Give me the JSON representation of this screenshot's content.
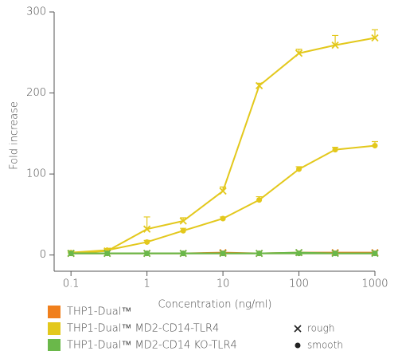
{
  "chart_data": {
    "type": "line",
    "x_label": "Concentration (ng/ml)",
    "y_label": "Fold increase",
    "x": [
      0.1,
      0.3,
      1,
      3,
      10,
      30,
      100,
      300,
      1000
    ],
    "xlim": [
      0.06,
      1000
    ],
    "xticks": [
      0.1,
      1,
      10,
      100,
      1000
    ],
    "x_log": true,
    "ylim": [
      -20,
      300
    ],
    "yticks": [
      0,
      100,
      200,
      300
    ],
    "grid": false,
    "series": [
      {
        "name": "THP1-Dual™",
        "color": "#f07f1c",
        "marker": "x",
        "values": [
          2,
          2,
          2,
          2,
          3,
          2,
          3,
          3,
          3
        ]
      },
      {
        "name": "THP1-Dual™",
        "color": "#f07f1c",
        "marker": "circle",
        "values": [
          2,
          2,
          2,
          2,
          2,
          2,
          2,
          2,
          2
        ]
      },
      {
        "name": "THP1-Dual™ MD2-CD14-TLR4",
        "color": "#e3c81c",
        "marker": "x",
        "values": [
          2,
          5,
          32,
          42,
          79,
          209,
          249,
          259,
          268
        ],
        "errors": [
          1,
          1,
          15,
          4,
          5,
          3,
          5,
          12,
          10
        ]
      },
      {
        "name": "THP1-Dual™ MD2-CD14-TLR4",
        "color": "#e3c81c",
        "marker": "circle",
        "values": [
          3,
          6,
          16,
          30,
          45,
          68,
          106,
          130,
          135
        ],
        "errors": [
          1,
          1,
          2,
          3,
          2,
          4,
          3,
          3,
          5
        ]
      },
      {
        "name": "THP1-Dual™ MD2-CD14 KO-TLR4",
        "color": "#6ab84a",
        "marker": "x",
        "values": [
          2,
          2,
          2,
          2,
          2,
          2,
          3,
          2,
          2
        ]
      },
      {
        "name": "THP1-Dual™ MD2-CD14 KO-TLR4",
        "color": "#6ab84a",
        "marker": "circle",
        "values": [
          2,
          2,
          2,
          2,
          2,
          2,
          2,
          2,
          2
        ]
      }
    ],
    "marker_legend": [
      {
        "label": "rough",
        "marker": "x"
      },
      {
        "label": "smooth",
        "marker": "circle"
      }
    ]
  }
}
